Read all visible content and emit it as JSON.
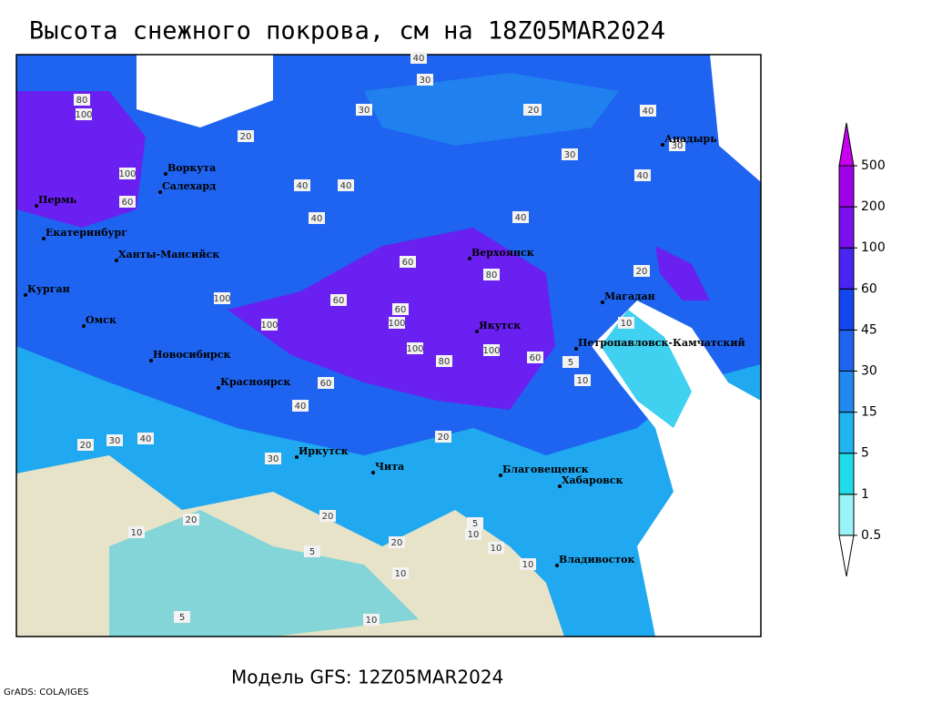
{
  "title": "Высота снежного покрова, см на 18Z05MAR2024",
  "model": "Модель GFS: 12Z05MAR2024",
  "credit": "GrADS: COLA/IGES",
  "legend": {
    "levels": [
      0.5,
      1,
      5,
      15,
      30,
      45,
      60,
      100,
      200,
      500
    ],
    "colors": [
      "#ffffff",
      "#98f4f8",
      "#20dce8",
      "#20b4f0",
      "#2088f0",
      "#1e64f0",
      "#1446f0",
      "#4a24f0",
      "#7a10f0",
      "#a000e8",
      "#c800f0"
    ]
  },
  "cities": [
    "Воркута",
    "Салехард",
    "Пермь",
    "Екатеринбург",
    "Ханты-Мансийск",
    "Курган",
    "Омск",
    "Новосибирск",
    "Красноярск",
    "Иркутск",
    "Чита",
    "Верхоянск",
    "Якутск",
    "Магадан",
    "Анадырь",
    "Петропавловск-Камчатский",
    "Благовещенск",
    "Хабаровск",
    "Владивосток"
  ],
  "contour_labels": [
    40,
    30,
    30,
    20,
    40,
    80,
    100,
    100,
    60,
    40,
    40,
    40,
    40,
    30,
    30,
    40,
    60,
    80,
    100,
    100,
    100,
    80,
    60,
    100,
    100,
    60,
    60,
    40,
    30,
    20,
    20,
    20,
    10,
    20,
    5,
    10,
    10,
    20,
    30,
    20,
    10,
    5,
    10,
    40,
    60,
    20,
    10,
    10,
    20,
    5,
    5,
    10
  ]
}
